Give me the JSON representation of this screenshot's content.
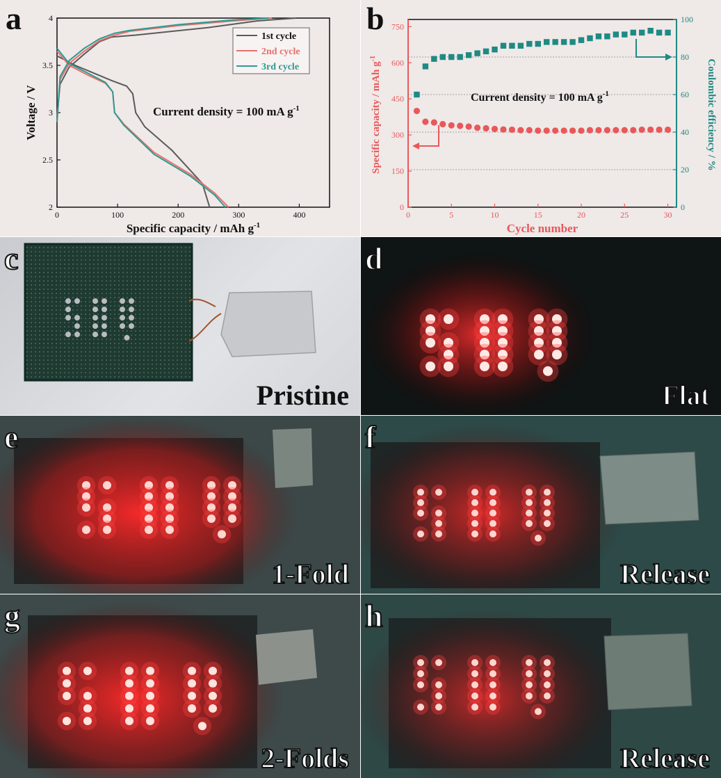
{
  "panels": {
    "a": {
      "label": "a"
    },
    "b": {
      "label": "b"
    },
    "c": {
      "label": "c",
      "caption": "Pristine"
    },
    "d": {
      "label": "d",
      "caption": "Flat"
    },
    "e": {
      "label": "e",
      "caption": "1-Fold"
    },
    "f": {
      "label": "f",
      "caption": "Release"
    },
    "g": {
      "label": "g",
      "caption": "2-Folds"
    },
    "h": {
      "label": "h",
      "caption": "Release"
    }
  },
  "photo_text": "SDU",
  "chart_data": [
    {
      "type": "line",
      "xlabel": "Specific capacity / mAh g",
      "xlabel_sup": "-1",
      "ylabel": "Voltage / V",
      "xlim": [
        0,
        450
      ],
      "ylim": [
        2,
        4
      ],
      "xticks": [
        "0",
        "100",
        "200",
        "300",
        "400"
      ],
      "yticks": [
        "2",
        "2.5",
        "3",
        "3.5",
        "4"
      ],
      "annotation": "Current density = 100 mA g",
      "annotation_sup": "-1",
      "legend": "top-right",
      "series": [
        {
          "name": "1st cycle",
          "color": "#5a5a5a",
          "charge": [
            [
              0,
              2.95
            ],
            [
              5,
              3.3
            ],
            [
              20,
              3.48
            ],
            [
              45,
              3.62
            ],
            [
              70,
              3.75
            ],
            [
              90,
              3.8
            ],
            [
              130,
              3.82
            ],
            [
              250,
              3.9
            ],
            [
              330,
              3.97
            ],
            [
              395,
              4.0
            ]
          ],
          "discharge": [
            [
              0,
              3.6
            ],
            [
              30,
              3.5
            ],
            [
              60,
              3.42
            ],
            [
              90,
              3.34
            ],
            [
              115,
              3.28
            ],
            [
              125,
              3.2
            ],
            [
              130,
              3.0
            ],
            [
              145,
              2.85
            ],
            [
              190,
              2.6
            ],
            [
              240,
              2.25
            ],
            [
              252,
              2.0
            ]
          ]
        },
        {
          "name": "2nd cycle",
          "color": "#e8706b",
          "charge": [
            [
              0,
              2.9
            ],
            [
              5,
              3.35
            ],
            [
              20,
              3.52
            ],
            [
              45,
              3.65
            ],
            [
              70,
              3.76
            ],
            [
              95,
              3.82
            ],
            [
              120,
              3.86
            ],
            [
              200,
              3.92
            ],
            [
              290,
              3.97
            ],
            [
              355,
              4.0
            ]
          ],
          "discharge": [
            [
              0,
              3.65
            ],
            [
              20,
              3.5
            ],
            [
              50,
              3.4
            ],
            [
              80,
              3.31
            ],
            [
              92,
              3.22
            ],
            [
              95,
              3.0
            ],
            [
              110,
              2.88
            ],
            [
              160,
              2.58
            ],
            [
              220,
              2.35
            ],
            [
              260,
              2.15
            ],
            [
              283,
              2.0
            ]
          ]
        },
        {
          "name": "3rd cycle",
          "color": "#2e9a92",
          "charge": [
            [
              0,
              2.9
            ],
            [
              5,
              3.38
            ],
            [
              20,
              3.55
            ],
            [
              45,
              3.68
            ],
            [
              70,
              3.78
            ],
            [
              95,
              3.84
            ],
            [
              120,
              3.87
            ],
            [
              200,
              3.93
            ],
            [
              290,
              3.98
            ],
            [
              350,
              4.0
            ]
          ],
          "discharge": [
            [
              0,
              3.68
            ],
            [
              20,
              3.52
            ],
            [
              50,
              3.42
            ],
            [
              80,
              3.32
            ],
            [
              92,
              3.22
            ],
            [
              95,
              3.0
            ],
            [
              110,
              2.87
            ],
            [
              160,
              2.56
            ],
            [
              220,
              2.33
            ],
            [
              260,
              2.13
            ],
            [
              278,
              2.0
            ]
          ]
        }
      ]
    },
    {
      "type": "scatter",
      "xlabel": "Cycle number",
      "ylabel_left": "Specific capacity / mAh g",
      "ylabel_left_sup": "-1",
      "ylabel_right": "Coulombic efficiency / %",
      "xlim": [
        0,
        31
      ],
      "ylim_left": [
        0,
        780
      ],
      "ylim_right": [
        0,
        100
      ],
      "xticks": [
        "0",
        "5",
        "10",
        "15",
        "20",
        "25",
        "30"
      ],
      "yticks_left": [
        "0",
        "150",
        "300",
        "450",
        "600",
        "750"
      ],
      "yticks_right": [
        "0",
        "20",
        "40",
        "60",
        "80",
        "100"
      ],
      "annotation": "Current density = 100 mA g",
      "annotation_sup": "-1",
      "capacity": {
        "name": "Specific capacity",
        "color": "#e8585a",
        "x_start": 1,
        "values": [
          400,
          355,
          352,
          345,
          340,
          338,
          335,
          330,
          328,
          325,
          323,
          322,
          320,
          320,
          318,
          318,
          318,
          318,
          318,
          318,
          320,
          320,
          320,
          320,
          320,
          320,
          322,
          322,
          322,
          322
        ]
      },
      "efficiency": {
        "name": "Coulombic efficiency",
        "color": "#1f8a83",
        "x_start": 1,
        "values": [
          60,
          75,
          79,
          80,
          80,
          80,
          81,
          82,
          83,
          84,
          86,
          86,
          86,
          87,
          87,
          88,
          88,
          88,
          88,
          89,
          90,
          91,
          91,
          92,
          92,
          93,
          93,
          94,
          93,
          93
        ]
      }
    }
  ]
}
